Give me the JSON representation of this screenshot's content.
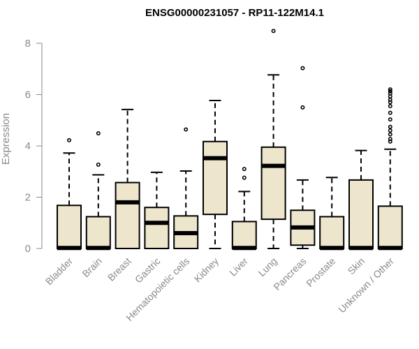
{
  "chart_data": {
    "type": "boxplot",
    "title": "ENSG00000231057 - RP11-122M14.1",
    "ylabel": "Expression",
    "xlabel": "",
    "ylim": [
      0,
      8.4
    ],
    "yticks": [
      0,
      2,
      4,
      6,
      8
    ],
    "box_color": "#ede6cc",
    "categories": [
      "Bladder",
      "Brain",
      "Breast",
      "Gastric",
      "Hematopoietic cells",
      "Kidney",
      "Liver",
      "Lung",
      "Pancreas",
      "Prostate",
      "Skin",
      "Unknown / Other"
    ],
    "boxes": [
      {
        "category": "Bladder",
        "min": 0,
        "q1": 0,
        "median": 0.02,
        "q3": 1.68,
        "max": 3.72,
        "outliers": [
          4.22
        ]
      },
      {
        "category": "Brain",
        "min": 0,
        "q1": 0,
        "median": 0.02,
        "q3": 1.24,
        "max": 2.87,
        "outliers": [
          3.27,
          4.49
        ]
      },
      {
        "category": "Breast",
        "min": 0,
        "q1": 0,
        "median": 1.8,
        "q3": 2.57,
        "max": 5.42,
        "outliers": []
      },
      {
        "category": "Gastric",
        "min": 0,
        "q1": 0,
        "median": 1.0,
        "q3": 1.6,
        "max": 2.97,
        "outliers": []
      },
      {
        "category": "Hematopoietic cells",
        "min": 0,
        "q1": 0,
        "median": 0.6,
        "q3": 1.27,
        "max": 3.02,
        "outliers": [
          4.64
        ]
      },
      {
        "category": "Kidney",
        "min": 0,
        "q1": 1.33,
        "median": 3.52,
        "q3": 4.17,
        "max": 5.77,
        "outliers": []
      },
      {
        "category": "Liver",
        "min": 0,
        "q1": 0,
        "median": 0.02,
        "q3": 1.05,
        "max": 2.22,
        "outliers": [
          2.76,
          3.1
        ]
      },
      {
        "category": "Lung",
        "min": 0,
        "q1": 1.14,
        "median": 3.22,
        "q3": 3.95,
        "max": 6.77,
        "outliers": [
          8.48
        ]
      },
      {
        "category": "Pancreas",
        "min": 0,
        "q1": 0.13,
        "median": 0.82,
        "q3": 1.49,
        "max": 2.67,
        "outliers": [
          5.5,
          7.03
        ]
      },
      {
        "category": "Prostate",
        "min": 0,
        "q1": 0,
        "median": 0.02,
        "q3": 1.24,
        "max": 2.77,
        "outliers": []
      },
      {
        "category": "Skin",
        "min": 0,
        "q1": 0,
        "median": 0.02,
        "q3": 2.67,
        "max": 3.82,
        "outliers": []
      },
      {
        "category": "Unknown / Other",
        "min": 0,
        "q1": 0,
        "median": 0.02,
        "q3": 1.65,
        "max": 3.87,
        "outliers": [
          4.17,
          4.27,
          4.45,
          4.6,
          4.74,
          5.03,
          5.29,
          5.55,
          5.7,
          5.8,
          5.93,
          6.04,
          6.13,
          6.2
        ]
      }
    ]
  }
}
